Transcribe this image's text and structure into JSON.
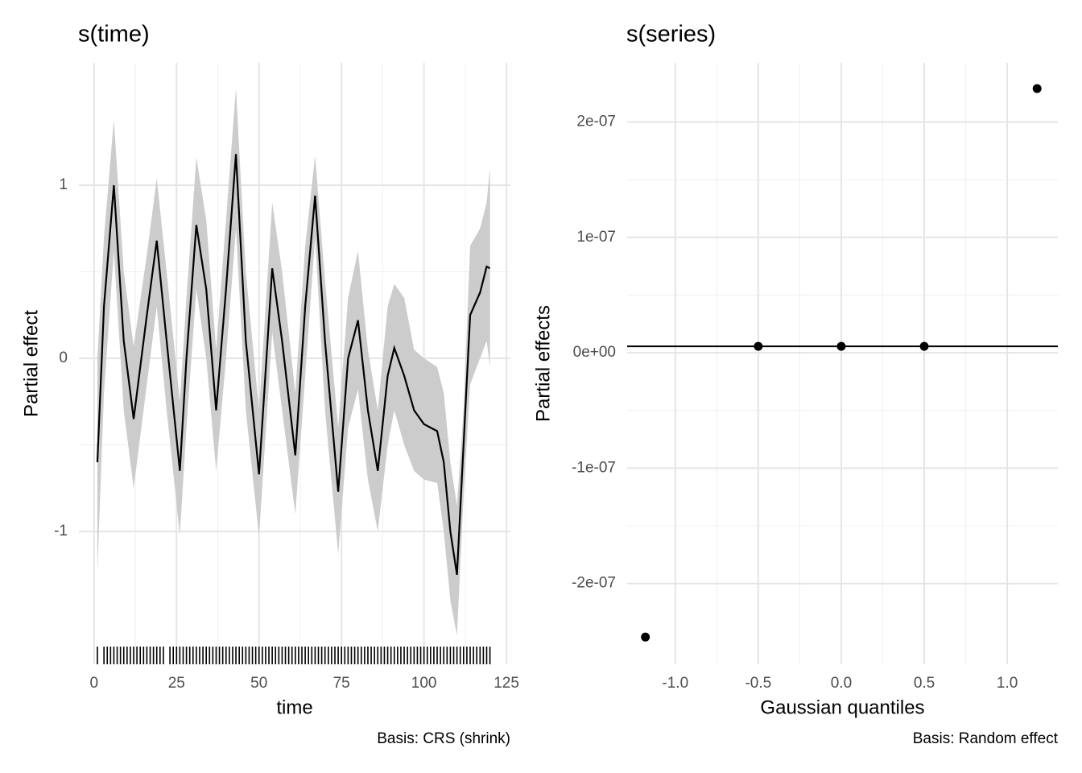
{
  "chart_data": [
    {
      "type": "line",
      "title": "s(time)",
      "xlabel": "time",
      "ylabel": "Partial effect",
      "caption": "Basis: CRS (shrink)",
      "x": [
        1,
        3,
        6,
        9,
        12,
        16,
        19,
        22,
        26,
        28,
        31,
        34,
        37,
        40,
        43,
        46,
        50,
        54,
        57,
        61,
        64,
        67,
        70,
        74,
        77,
        80,
        83,
        86,
        89,
        91,
        94,
        97,
        100,
        104,
        106,
        108,
        110,
        112,
        114,
        117,
        119,
        120
      ],
      "values": [
        -0.6,
        0.3,
        1.0,
        0.1,
        -0.35,
        0.25,
        0.68,
        0.1,
        -0.65,
        0.0,
        0.77,
        0.4,
        -0.3,
        0.4,
        1.18,
        0.1,
        -0.67,
        0.52,
        0.1,
        -0.56,
        0.3,
        0.94,
        0.1,
        -0.77,
        0.0,
        0.22,
        -0.3,
        -0.65,
        -0.1,
        0.06,
        -0.1,
        -0.3,
        -0.38,
        -0.42,
        -0.6,
        -1.0,
        -1.25,
        -0.5,
        0.25,
        0.38,
        0.53,
        0.52
      ],
      "upper": [
        0.0,
        0.7,
        1.38,
        0.5,
        0.07,
        0.6,
        1.04,
        0.5,
        -0.25,
        0.35,
        1.16,
        0.8,
        0.05,
        0.8,
        1.56,
        0.5,
        -0.3,
        0.9,
        0.5,
        -0.2,
        0.65,
        1.17,
        0.45,
        -0.4,
        0.35,
        0.62,
        0.05,
        -0.3,
        0.3,
        0.43,
        0.35,
        0.05,
        0.0,
        -0.05,
        -0.2,
        -0.6,
        -0.85,
        -0.3,
        0.65,
        0.75,
        0.9,
        1.1
      ],
      "lower": [
        -1.23,
        -0.2,
        0.62,
        -0.3,
        -0.75,
        -0.15,
        0.3,
        -0.3,
        -1.02,
        -0.4,
        0.4,
        0.0,
        -0.65,
        0.0,
        0.75,
        -0.3,
        -1.03,
        0.15,
        -0.3,
        -0.9,
        -0.1,
        0.7,
        -0.3,
        -1.13,
        -0.4,
        -0.18,
        -0.7,
        -1.0,
        -0.5,
        -0.3,
        -0.5,
        -0.65,
        -0.7,
        -0.72,
        -1.0,
        -1.4,
        -1.6,
        -0.8,
        -0.15,
        0.0,
        0.1,
        -0.05
      ],
      "rug": [
        1,
        3,
        4,
        5,
        6,
        7,
        8,
        9,
        10,
        11,
        12,
        13,
        14,
        15,
        16,
        17,
        18,
        19,
        20,
        21,
        23,
        24,
        25,
        26,
        27,
        28,
        29,
        30,
        31,
        32,
        33,
        34,
        35,
        36,
        37,
        38,
        39,
        40,
        41,
        42,
        43,
        44,
        45,
        46,
        47,
        48,
        49,
        50,
        51,
        52,
        53,
        54,
        55,
        56,
        57,
        58,
        59,
        60,
        61,
        62,
        63,
        64,
        65,
        66,
        67,
        68,
        69,
        70,
        71,
        72,
        73,
        74,
        75,
        76,
        77,
        78,
        79,
        80,
        81,
        82,
        83,
        84,
        85,
        86,
        87,
        88,
        89,
        90,
        91,
        92,
        93,
        94,
        95,
        96,
        97,
        98,
        99,
        100,
        101,
        102,
        103,
        104,
        105,
        106,
        107,
        108,
        109,
        110,
        111,
        112,
        113,
        114,
        115,
        116,
        117,
        118,
        119,
        120
      ],
      "color": "#000000",
      "ribbon_color": "#cccccc",
      "xlim": [
        -4.6,
        126.2
      ],
      "xticks": [
        0,
        25,
        50,
        75,
        100,
        125
      ],
      "ylim": [
        -1.767,
        1.707
      ],
      "yticks": [
        -1,
        0,
        1
      ],
      "grid": true
    },
    {
      "type": "scatter",
      "title": "s(series)",
      "xlabel": "Gaussian quantiles",
      "ylabel": "Partial effects",
      "caption": "Basis: Random effect",
      "x": [
        -1.18,
        -0.5,
        0.0,
        0.5,
        1.18
      ],
      "values": [
        -2.464e-07,
        5.6e-09,
        5.6e-09,
        5.6e-09,
        2.29e-07
      ],
      "hline": 5.6e-09,
      "color": "#000000",
      "xlim": [
        -1.29,
        1.305
      ],
      "xticks": [
        {
          "value": -1,
          "label": "-1.0"
        },
        {
          "value": -0.5,
          "label": "-0.5"
        },
        {
          "value": 0,
          "label": "0.0"
        },
        {
          "value": 0.5,
          "label": "0.5"
        },
        {
          "value": 1,
          "label": "1.0"
        }
      ],
      "ylim": [
        -2.7e-07,
        2.513e-07
      ],
      "yticks": [
        {
          "value": -2e-07,
          "label": "-2e-07"
        },
        {
          "value": -1e-07,
          "label": "-1e-07"
        },
        {
          "value": 0,
          "label": "0e+00"
        },
        {
          "value": 1e-07,
          "label": "1e-07"
        },
        {
          "value": 2e-07,
          "label": "2e-07"
        }
      ],
      "grid": true
    }
  ]
}
